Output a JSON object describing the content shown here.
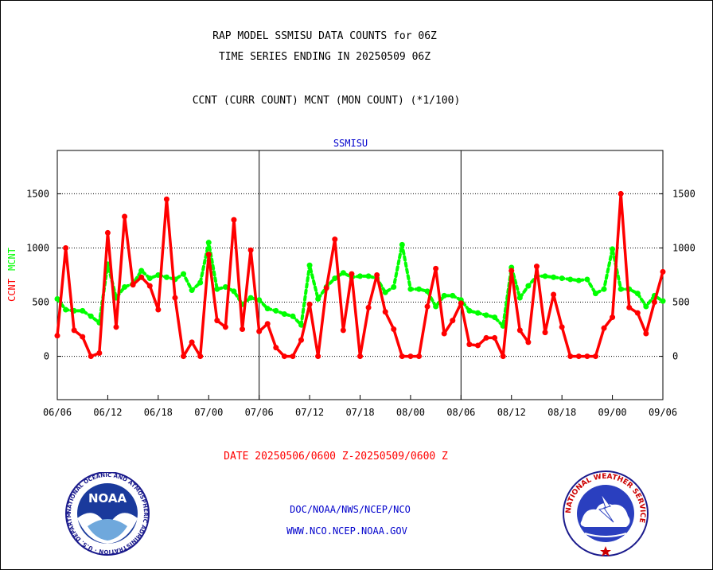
{
  "header": {
    "title_line1": "RAP MODEL SSMISU DATA COUNTS for 06Z",
    "title_line2": "TIME SERIES ENDING IN 20250509 06Z",
    "subtitle": "CCNT (CURR COUNT) MCNT (MON COUNT) (*1/100)"
  },
  "chart_data": {
    "type": "line",
    "title": "SSMISU",
    "ylabel_left": [
      "CCNT",
      "MCNT"
    ],
    "ylim": [
      -400,
      1900
    ],
    "yticks": [
      0,
      500,
      1000,
      1500
    ],
    "x_tick_labels": [
      "06/06",
      "06/12",
      "06/18",
      "07/00",
      "07/06",
      "07/12",
      "07/18",
      "08/00",
      "08/06",
      "08/12",
      "08/18",
      "09/00",
      "09/06"
    ],
    "x_count": 73,
    "panel_separators": [
      24,
      48
    ],
    "grid": true,
    "colors": {
      "ccnt": "#ff0000",
      "mcnt": "#00ff00",
      "title": "#0000cc"
    },
    "series": [
      {
        "name": "CCNT",
        "values": [
          190,
          1000,
          240,
          180,
          0,
          30,
          1140,
          270,
          1290,
          660,
          730,
          650,
          430,
          1450,
          540,
          0,
          130,
          0,
          940,
          330,
          270,
          1260,
          250,
          980,
          230,
          300,
          80,
          0,
          0,
          150,
          480,
          0,
          630,
          1080,
          240,
          760,
          0,
          450,
          750,
          410,
          250,
          0,
          0,
          0,
          460,
          810,
          210,
          330,
          490,
          110,
          100,
          170,
          170,
          0,
          790,
          240,
          130,
          830,
          220,
          570,
          270,
          0,
          0,
          0,
          0,
          260,
          360,
          1500,
          450,
          400,
          210,
          500,
          780
        ]
      },
      {
        "name": "MCNT",
        "values": [
          530,
          430,
          420,
          420,
          370,
          310,
          850,
          540,
          640,
          670,
          790,
          720,
          750,
          730,
          710,
          760,
          610,
          680,
          1050,
          620,
          640,
          600,
          480,
          540,
          520,
          440,
          420,
          390,
          370,
          290,
          840,
          530,
          640,
          720,
          770,
          730,
          740,
          740,
          720,
          590,
          640,
          1030,
          620,
          620,
          600,
          460,
          560,
          560,
          520,
          420,
          400,
          380,
          360,
          280,
          820,
          540,
          650,
          740,
          740,
          730,
          720,
          710,
          700,
          710,
          580,
          620,
          990,
          620,
          620,
          580,
          460,
          560,
          510
        ]
      }
    ]
  },
  "footer": {
    "date_range": "DATE 20250506/0600 Z-20250509/0600 Z",
    "org_path": "DOC/NOAA/NWS/NCEP/NCO",
    "website": "WWW.NCO.NCEP.NOAA.GOV"
  },
  "logos": {
    "noaa_text": "NOAA",
    "noaa_ring": "NATIONAL OCEANIC AND ATMOSPHERIC ADMINISTRATION · U.S. DEPARTMENT OF COMMERCE",
    "nws_ring": "NATIONAL WEATHER SERVICE"
  }
}
